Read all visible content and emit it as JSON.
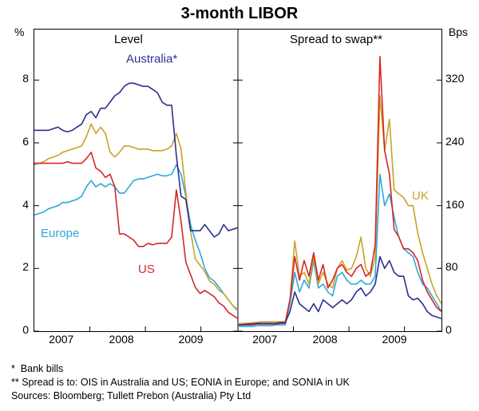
{
  "title": "3-month LIBOR",
  "panels": {
    "left": {
      "title": "Level",
      "y_unit": "%"
    },
    "right": {
      "title": "Spread to swap**",
      "y_unit": "Bps"
    }
  },
  "left_axis": {
    "unit": "%",
    "ticks": [
      0,
      2,
      4,
      6,
      8
    ],
    "ylim": [
      0,
      9
    ]
  },
  "right_axis": {
    "unit": "Bps",
    "ticks": [
      0,
      80,
      160,
      240,
      320
    ],
    "ylim": [
      0,
      360
    ]
  },
  "x_axis": {
    "labels": [
      "2007",
      "2008",
      "2009"
    ],
    "range_months": 44
  },
  "colors": {
    "australia": "#2d2f8f",
    "uk": "#c9a227",
    "us": "#d62728",
    "europe": "#2ca8d8",
    "grid": "#000000",
    "background": "#ffffff"
  },
  "series_labels": {
    "left": {
      "australia": "Australia*",
      "europe": "Europe",
      "us": "US"
    },
    "right": {
      "uk": "UK"
    }
  },
  "series": {
    "level": {
      "australia": [
        6.4,
        6.4,
        6.4,
        6.4,
        6.45,
        6.5,
        6.4,
        6.35,
        6.4,
        6.5,
        6.6,
        6.9,
        7.0,
        6.8,
        7.1,
        7.1,
        7.3,
        7.5,
        7.6,
        7.8,
        7.9,
        7.9,
        7.85,
        7.8,
        7.8,
        7.7,
        7.6,
        7.3,
        7.2,
        7.2,
        5.6,
        4.3,
        4.2,
        3.2,
        3.2,
        3.2,
        3.4,
        3.2,
        3.0,
        3.1,
        3.4,
        3.2,
        3.25,
        3.3
      ],
      "uk": [
        5.3,
        5.35,
        5.4,
        5.5,
        5.55,
        5.6,
        5.7,
        5.75,
        5.8,
        5.85,
        5.9,
        6.2,
        6.6,
        6.3,
        6.5,
        6.3,
        5.7,
        5.55,
        5.7,
        5.9,
        5.9,
        5.85,
        5.8,
        5.8,
        5.8,
        5.75,
        5.75,
        5.75,
        5.8,
        5.9,
        6.3,
        5.8,
        4.4,
        3.2,
        2.3,
        2.1,
        1.9,
        1.6,
        1.5,
        1.3,
        1.2,
        1.0,
        0.8,
        0.7
      ],
      "us": [
        5.35,
        5.35,
        5.35,
        5.35,
        5.35,
        5.35,
        5.35,
        5.4,
        5.35,
        5.35,
        5.35,
        5.5,
        5.7,
        5.2,
        5.1,
        4.9,
        5.0,
        4.6,
        3.1,
        3.1,
        3.0,
        2.9,
        2.7,
        2.7,
        2.8,
        2.75,
        2.8,
        2.8,
        2.8,
        3.0,
        4.5,
        3.5,
        2.2,
        1.8,
        1.4,
        1.2,
        1.3,
        1.2,
        1.1,
        0.9,
        0.8,
        0.6,
        0.5,
        0.4
      ],
      "europe": [
        3.7,
        3.75,
        3.8,
        3.9,
        3.95,
        4.0,
        4.1,
        4.1,
        4.15,
        4.2,
        4.3,
        4.6,
        4.8,
        4.6,
        4.7,
        4.6,
        4.7,
        4.6,
        4.4,
        4.4,
        4.6,
        4.8,
        4.85,
        4.85,
        4.9,
        4.95,
        5.0,
        4.95,
        4.95,
        5.0,
        5.3,
        5.0,
        4.3,
        3.4,
        2.9,
        2.5,
        2.0,
        1.7,
        1.6,
        1.4,
        1.2,
        1.0,
        0.8,
        0.65
      ]
    },
    "spread": {
      "australia": [
        8,
        8,
        9,
        9,
        10,
        10,
        10,
        10,
        10,
        11,
        11,
        25,
        50,
        35,
        30,
        25,
        35,
        25,
        40,
        35,
        30,
        35,
        40,
        35,
        40,
        50,
        55,
        45,
        50,
        60,
        95,
        80,
        90,
        75,
        70,
        70,
        45,
        40,
        42,
        35,
        25,
        20,
        18,
        16
      ],
      "uk": [
        10,
        10,
        10,
        11,
        11,
        12,
        12,
        12,
        12,
        12,
        12,
        40,
        115,
        70,
        75,
        60,
        95,
        60,
        75,
        60,
        55,
        80,
        90,
        78,
        80,
        95,
        120,
        80,
        70,
        95,
        300,
        230,
        270,
        180,
        175,
        170,
        160,
        160,
        125,
        100,
        80,
        60,
        45,
        35
      ],
      "us": [
        8,
        8,
        8,
        8,
        9,
        9,
        9,
        9,
        9,
        10,
        10,
        40,
        95,
        65,
        90,
        70,
        100,
        65,
        85,
        55,
        65,
        80,
        85,
        75,
        70,
        80,
        85,
        70,
        75,
        110,
        350,
        230,
        200,
        130,
        120,
        105,
        105,
        100,
        90,
        65,
        50,
        40,
        30,
        25
      ],
      "europe": [
        6,
        6,
        6,
        6,
        7,
        7,
        7,
        7,
        8,
        8,
        8,
        35,
        75,
        50,
        65,
        55,
        90,
        55,
        60,
        50,
        45,
        70,
        75,
        65,
        60,
        60,
        65,
        60,
        60,
        70,
        200,
        160,
        175,
        145,
        120,
        105,
        100,
        95,
        75,
        60,
        55,
        45,
        35,
        25
      ]
    }
  },
  "line_width": 1.6,
  "footnotes": {
    "f1": "*  Bank bills",
    "f2": "** Spread is to: OIS in Australia and US; EONIA in Europe; and SONIA in UK",
    "sources": "Sources: Bloomberg; Tullett Prebon (Australia) Pty Ltd"
  }
}
